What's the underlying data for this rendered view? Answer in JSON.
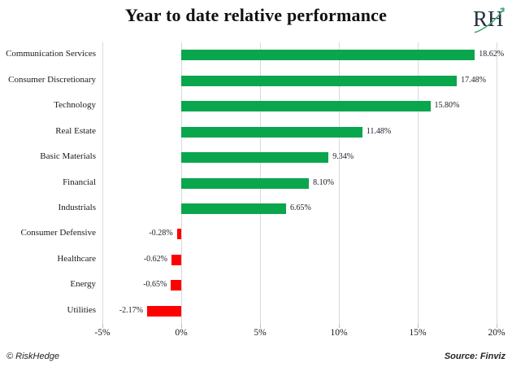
{
  "title": "Year to date relative performance",
  "logo": {
    "text": "RH",
    "letter_color": "#22333d",
    "arrow_color": "#4aa97e"
  },
  "chart_data": {
    "type": "bar",
    "orientation": "horizontal",
    "title": "Year to date relative performance",
    "xlabel": "",
    "ylabel": "",
    "categories": [
      "Communication Services",
      "Consumer Discretionary",
      "Technology",
      "Real Estate",
      "Basic Materials",
      "Financial",
      "Industrials",
      "Consumer Defensive",
      "Healthcare",
      "Energy",
      "Utilities"
    ],
    "values": [
      18.62,
      17.48,
      15.8,
      11.48,
      9.34,
      8.1,
      6.65,
      -0.28,
      -0.62,
      -0.65,
      -2.17
    ],
    "value_labels": [
      "18.62%",
      "17.48%",
      "15.80%",
      "11.48%",
      "9.34%",
      "8.10%",
      "6.65%",
      "-0.28%",
      "-0.62%",
      "-0.65%",
      "-2.17%"
    ],
    "xlim": [
      -5,
      20
    ],
    "xticks": [
      -5,
      0,
      5,
      10,
      15,
      20
    ],
    "xtick_labels": [
      "-5%",
      "0%",
      "5%",
      "10%",
      "15%",
      "20%"
    ],
    "grid": "vertical",
    "legend": "none",
    "positive_color": "#0aa64e",
    "negative_color": "#fe0000"
  },
  "footer": {
    "left": "© RiskHedge",
    "right": "Source: Finviz"
  }
}
